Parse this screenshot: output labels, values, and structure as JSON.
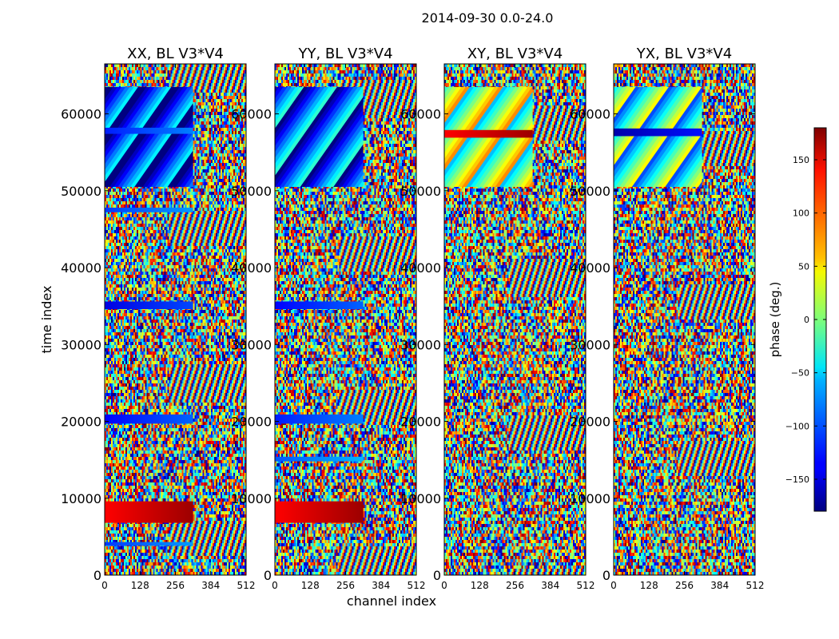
{
  "figure": {
    "suptitle": "2014-09-30 0.0-24.0"
  },
  "chart_data": {
    "type": "heatmap",
    "quantity": "visibility phase",
    "xlabel": "channel index",
    "ylabel": "time index",
    "xlim": [
      0,
      512
    ],
    "ylim": [
      0,
      66500
    ],
    "xticks": [
      0,
      128,
      256,
      384,
      512
    ],
    "yticks": [
      0,
      10000,
      20000,
      30000,
      40000,
      50000,
      60000
    ],
    "colormap": "jet",
    "colorbar": {
      "label": "phase (deg.)",
      "range": [
        -180,
        180
      ],
      "ticks": [
        -150,
        -100,
        -50,
        0,
        50,
        100,
        150
      ],
      "tick_labels": [
        "−150",
        "−100",
        "−50",
        "0",
        "50",
        "100",
        "150"
      ]
    },
    "panels": [
      {
        "title": "XX, BL V3*V4",
        "coherent_bands": [
          {
            "t": [
              50500,
              63500
            ],
            "ch": [
              0,
              320
            ],
            "phase": -115,
            "style": "fringe"
          },
          {
            "t": [
              57400,
              58200
            ],
            "ch": [
              0,
              320
            ],
            "phase": -110,
            "style": "flat"
          },
          {
            "t": [
              47200,
              47800
            ],
            "ch": [
              0,
              320
            ],
            "phase": -100,
            "style": "flat"
          },
          {
            "t": [
              34600,
              35600
            ],
            "ch": [
              0,
              320
            ],
            "phase": -130,
            "style": "flat"
          },
          {
            "t": [
              19700,
              20900
            ],
            "ch": [
              0,
              320
            ],
            "phase": -120,
            "style": "flat"
          },
          {
            "t": [
              6800,
              9600
            ],
            "ch": [
              0,
              320
            ],
            "phase": 150,
            "style": "flat"
          },
          {
            "t": [
              3800,
              4300
            ],
            "ch": [
              0,
              320
            ],
            "phase": -100,
            "style": "flat"
          }
        ]
      },
      {
        "title": "YY, BL V3*V4",
        "coherent_bands": [
          {
            "t": [
              50500,
              63500
            ],
            "ch": [
              0,
              320
            ],
            "phase": -95,
            "style": "fringe"
          },
          {
            "t": [
              34600,
              35600
            ],
            "ch": [
              0,
              320
            ],
            "phase": -120,
            "style": "flat"
          },
          {
            "t": [
              19700,
              20900
            ],
            "ch": [
              0,
              320
            ],
            "phase": -110,
            "style": "flat"
          },
          {
            "t": [
              14800,
              15400
            ],
            "ch": [
              0,
              320
            ],
            "phase": -90,
            "style": "flat"
          },
          {
            "t": [
              6800,
              9600
            ],
            "ch": [
              0,
              320
            ],
            "phase": 150,
            "style": "flat"
          }
        ]
      },
      {
        "title": "XY, BL V3*V4",
        "coherent_bands": [
          {
            "t": [
              50500,
              63500
            ],
            "ch": [
              0,
              320
            ],
            "phase": 20,
            "style": "fringe"
          },
          {
            "t": [
              56900,
              57900
            ],
            "ch": [
              0,
              320
            ],
            "phase": 150,
            "style": "flat"
          }
        ]
      },
      {
        "title": "YX, BL V3*V4",
        "coherent_bands": [
          {
            "t": [
              50500,
              63500
            ],
            "ch": [
              0,
              320
            ],
            "phase": -20,
            "style": "fringe"
          },
          {
            "t": [
              57100,
              58100
            ],
            "ch": [
              0,
              320
            ],
            "phase": -150,
            "style": "flat"
          }
        ]
      }
    ]
  }
}
